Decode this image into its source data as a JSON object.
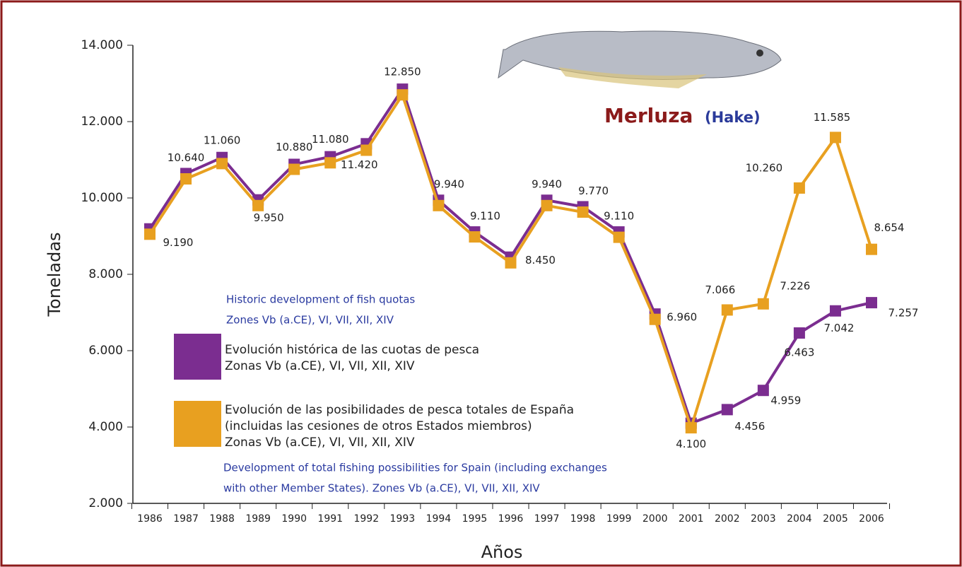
{
  "chart_data": {
    "type": "line",
    "title": "Merluza",
    "subtitle": "(Hake)",
    "xlabel": "Años",
    "ylabel": "Toneladas",
    "categories": [
      "1986",
      "1987",
      "1988",
      "1989",
      "1990",
      "1991",
      "1992",
      "1993",
      "1994",
      "1995",
      "1996",
      "1997",
      "1998",
      "1999",
      "2000",
      "2001",
      "2002",
      "2003",
      "2004",
      "2005",
      "2006"
    ],
    "ylim": [
      2000,
      14000
    ],
    "yticks": [
      {
        "value": 2000,
        "label": "2.000"
      },
      {
        "value": 4000,
        "label": "4.000"
      },
      {
        "value": 6000,
        "label": "6.000"
      },
      {
        "value": 8000,
        "label": "8.000"
      },
      {
        "value": 10000,
        "label": "10.000"
      },
      {
        "value": 12000,
        "label": "12.000"
      },
      {
        "value": 14000,
        "label": "14.000"
      }
    ],
    "grid": false,
    "series": [
      {
        "name": "Evolución histórica de las cuotas de pesca\nZonas Vb (a.CE), VI, VII, XII, XIV",
        "color": "#7b2d90",
        "values": [
          9190,
          10640,
          11060,
          9950,
          10880,
          11080,
          11420,
          12850,
          9940,
          9110,
          8450,
          9940,
          9770,
          9110,
          6960,
          4100,
          4456,
          4959,
          6463,
          7042,
          7257
        ],
        "value_labels": [
          "9.190",
          "10.640",
          "11.060",
          "9.950",
          "10.880",
          "11.080",
          "11.420",
          "12.850",
          "9.940",
          "9.110",
          "8.450",
          "9.940",
          "9.770",
          "9.110",
          "6.960",
          "4.100",
          "4.456",
          "4.959",
          "6.463",
          "7.042",
          "7.257"
        ]
      },
      {
        "name": "Evolución de las posibilidades de pesca totales de España\n(incluidas las cesiones de otros Estados miembros)\nZonas Vb (a.CE), VI, VII, XII, XIV",
        "color": "#e8a020",
        "values": [
          9050,
          10500,
          10900,
          9800,
          10750,
          10920,
          11250,
          12700,
          9800,
          8980,
          8300,
          9800,
          9630,
          8970,
          6820,
          3980,
          7066,
          7226,
          10260,
          11585,
          8654
        ],
        "value_labels": [
          null,
          null,
          null,
          null,
          null,
          null,
          null,
          null,
          null,
          null,
          null,
          null,
          null,
          null,
          null,
          null,
          "7.066",
          "7.226",
          "10.260",
          "11.585",
          "8.654"
        ]
      }
    ],
    "annotations": [
      [
        "Historic development of fish quotas",
        "Zones Vb (a.CE), VI, VII, XII, XIV"
      ],
      [
        "Development of total fishing possibilities for Spain (including exchanges",
        "with other Member States). Zones Vb (a.CE), VI, VII, XII, XIV"
      ]
    ]
  }
}
